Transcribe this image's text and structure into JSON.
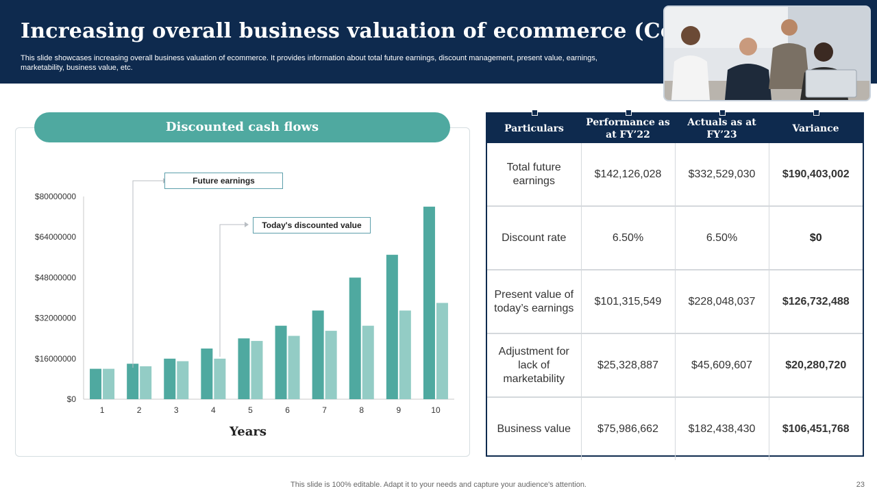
{
  "header": {
    "title": "Increasing overall business valuation of ecommerce (Contd.)",
    "subtitle": "This slide showcases increasing overall business valuation of ecommerce. It provides information about total future earnings, discount management, present value, earnings, marketability, business value, etc."
  },
  "chart_panel": {
    "heading": "Discounted cash flows",
    "callouts": {
      "future_earnings": "Future earnings",
      "discounted_value": "Today's discounted value"
    }
  },
  "chart_data": {
    "type": "bar",
    "categories": [
      "1",
      "2",
      "3",
      "4",
      "5",
      "6",
      "7",
      "8",
      "9",
      "10"
    ],
    "series": [
      {
        "name": "Future earnings",
        "color": "#4fa9a0",
        "values": [
          12000000,
          14000000,
          16000000,
          20000000,
          24000000,
          29000000,
          35000000,
          48000000,
          57000000,
          76000000
        ]
      },
      {
        "name": "Today's discounted value",
        "color": "#93ccc5",
        "values": [
          12000000,
          13000000,
          15000000,
          16000000,
          23000000,
          25000000,
          27000000,
          29000000,
          35000000,
          38000000
        ]
      }
    ],
    "yticks": [
      "$0",
      "$16000000",
      "$32000000",
      "$48000000",
      "$64000000",
      "$80000000"
    ],
    "ylim": [
      0,
      80000000
    ],
    "xlabel": "Years",
    "ylabel": ""
  },
  "table": {
    "headers": [
      "Particulars",
      "Performance as at FY’22",
      "Actuals as at FY’23",
      "Variance"
    ],
    "rows": [
      {
        "particular": "Total future earnings",
        "performance": "$142,126,028",
        "actual": "$332,529,030",
        "variance": "$190,403,002"
      },
      {
        "particular": "Discount rate",
        "performance": "6.50%",
        "actual": "6.50%",
        "variance": "$0"
      },
      {
        "particular": "Present value of today’s earnings",
        "performance": "$101,315,549",
        "actual": "$228,048,037",
        "variance": "$126,732,488"
      },
      {
        "particular": "Adjustment for lack of marketability",
        "performance": "$25,328,887",
        "actual": "$45,609,607",
        "variance": "$20,280,720"
      },
      {
        "particular": "Business value",
        "performance": "$75,986,662",
        "actual": "$182,438,430",
        "variance": "$106,451,768"
      }
    ]
  },
  "footer": {
    "note": "This slide is 100% editable. Adapt it to your needs and capture your audience's attention.",
    "page": "23"
  },
  "colors": {
    "navy": "#0e2a4e",
    "teal": "#4fa9a0",
    "light_teal": "#93ccc5",
    "green": "#1a9b4b"
  }
}
